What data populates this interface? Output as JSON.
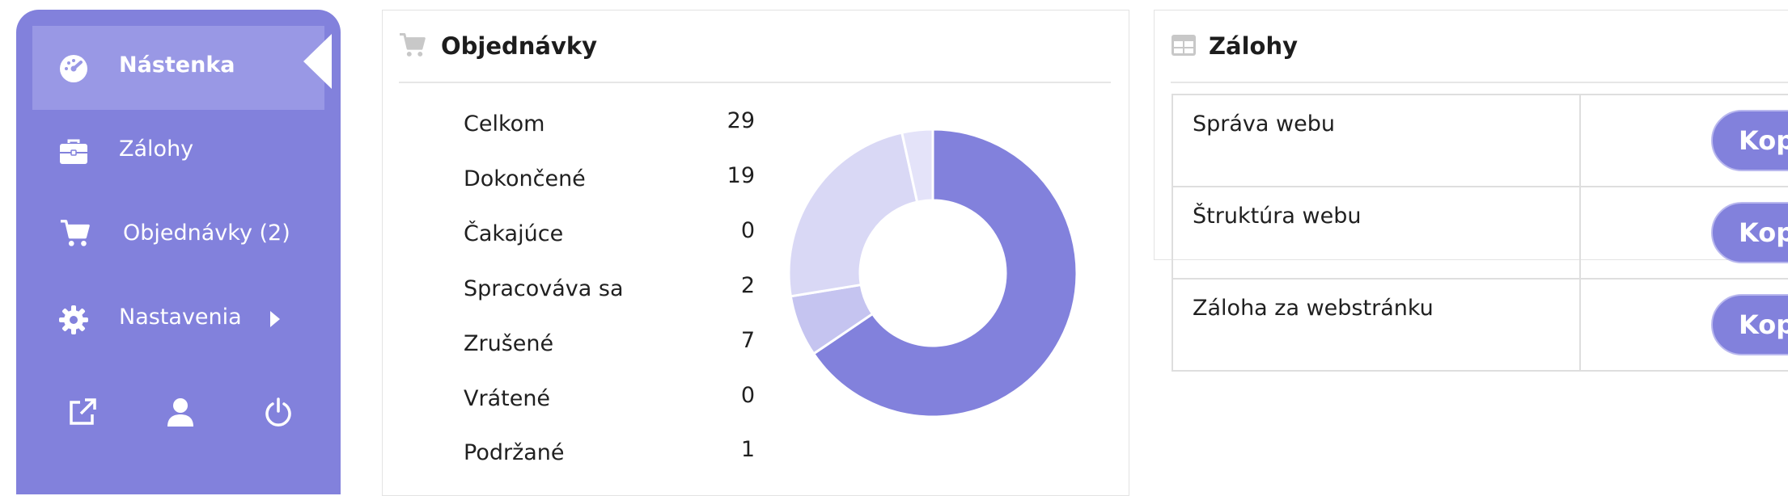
{
  "sidebar": {
    "items": [
      {
        "label": "Nástenka",
        "icon": "dashboard-icon",
        "active": true
      },
      {
        "label": "Zálohy",
        "icon": "briefcase-icon"
      },
      {
        "label": "Objednávky (2)",
        "icon": "cart-icon"
      },
      {
        "label": "Nastavenia",
        "icon": "gear-icon"
      }
    ],
    "footer_icons": [
      "external-link-icon",
      "user-icon",
      "power-icon"
    ]
  },
  "orders": {
    "title": "Objednávky",
    "icon": "cart-icon",
    "stats": [
      {
        "label": "Celkom",
        "value": "29"
      },
      {
        "label": "Dokončené",
        "value": "19"
      },
      {
        "label": "Čakajúce",
        "value": "0"
      },
      {
        "label": "Spracováva sa",
        "value": "2"
      },
      {
        "label": "Zrušené",
        "value": "7"
      },
      {
        "label": "Vrátené",
        "value": "0"
      },
      {
        "label": "Podržané",
        "value": "1"
      }
    ]
  },
  "chart_data": {
    "type": "pie",
    "style": "donut",
    "categories": [
      "Dokončené",
      "Spracováva sa",
      "Zrušené",
      "Podržané"
    ],
    "values": [
      19,
      2,
      7,
      1
    ],
    "colors": [
      "#8281dc",
      "#c5c4f0",
      "#d9d8f5",
      "#e4e3f9"
    ]
  },
  "backups": {
    "title": "Zálohy",
    "icon": "table-icon",
    "rows": [
      {
        "name": "Správa webu",
        "button": "Kopí"
      },
      {
        "name": "Štruktúra webu",
        "button": "Kopí"
      },
      {
        "name": "Záloha za webstránku",
        "button": "Kopí"
      }
    ]
  },
  "colors": {
    "accent": "#8281dc",
    "accent_light": "#9998e5"
  }
}
